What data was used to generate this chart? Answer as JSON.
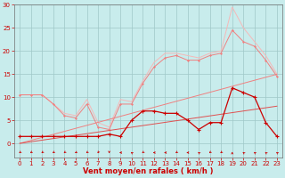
{
  "xlabel": "Vent moyen/en rafales ( km/h )",
  "xlim": [
    -0.5,
    23.5
  ],
  "ylim": [
    -3,
    30
  ],
  "yticks": [
    0,
    5,
    10,
    15,
    20,
    25,
    30
  ],
  "xticks": [
    0,
    1,
    2,
    3,
    4,
    5,
    6,
    7,
    8,
    9,
    10,
    11,
    12,
    13,
    14,
    15,
    16,
    17,
    18,
    19,
    20,
    21,
    22,
    23
  ],
  "bg_color": "#c8ecec",
  "grid_color": "#9fc8c8",
  "x": [
    0,
    1,
    2,
    3,
    4,
    5,
    6,
    7,
    8,
    9,
    10,
    11,
    12,
    13,
    14,
    15,
    16,
    17,
    18,
    19,
    20,
    21,
    22,
    23
  ],
  "y_envelope_max": [
    10.5,
    10.5,
    10.5,
    8.5,
    6.5,
    6.0,
    9.5,
    4.5,
    3.5,
    9.5,
    9.0,
    13.5,
    17.5,
    19.5,
    19.5,
    19.0,
    18.5,
    19.5,
    20.0,
    29.5,
    25.0,
    22.0,
    19.0,
    15.0
  ],
  "y_envelope_mid": [
    10.5,
    10.5,
    10.5,
    8.5,
    6.0,
    5.5,
    8.5,
    3.5,
    3.0,
    8.5,
    8.5,
    13.0,
    16.5,
    18.5,
    19.0,
    18.0,
    18.0,
    19.0,
    19.5,
    24.5,
    22.0,
    21.0,
    18.0,
    14.5
  ],
  "y_trend_upper": [
    0.0,
    0.65,
    1.3,
    1.95,
    2.6,
    3.25,
    3.9,
    4.55,
    5.2,
    5.85,
    6.5,
    7.15,
    7.8,
    8.45,
    9.1,
    9.75,
    10.4,
    11.05,
    11.7,
    12.35,
    13.0,
    13.65,
    14.3,
    14.95
  ],
  "y_trend_lower": [
    0.0,
    0.35,
    0.7,
    1.05,
    1.4,
    1.75,
    2.1,
    2.45,
    2.8,
    3.15,
    3.5,
    3.85,
    4.2,
    4.55,
    4.9,
    5.25,
    5.6,
    5.95,
    6.3,
    6.65,
    7.0,
    7.35,
    7.7,
    8.05
  ],
  "y_actual": [
    1.5,
    1.5,
    1.5,
    1.5,
    1.5,
    1.5,
    1.5,
    1.5,
    2.0,
    1.5,
    5.0,
    7.0,
    7.0,
    6.5,
    6.5,
    5.0,
    3.0,
    4.5,
    4.5,
    12.0,
    11.0,
    10.0,
    4.5,
    1.5
  ],
  "color_lightest": "#f5b8b8",
  "color_light": "#f08080",
  "color_mid": "#e05050",
  "color_dark": "#cc0000",
  "tick_fontsize": 5.0,
  "label_fontsize": 6.0
}
